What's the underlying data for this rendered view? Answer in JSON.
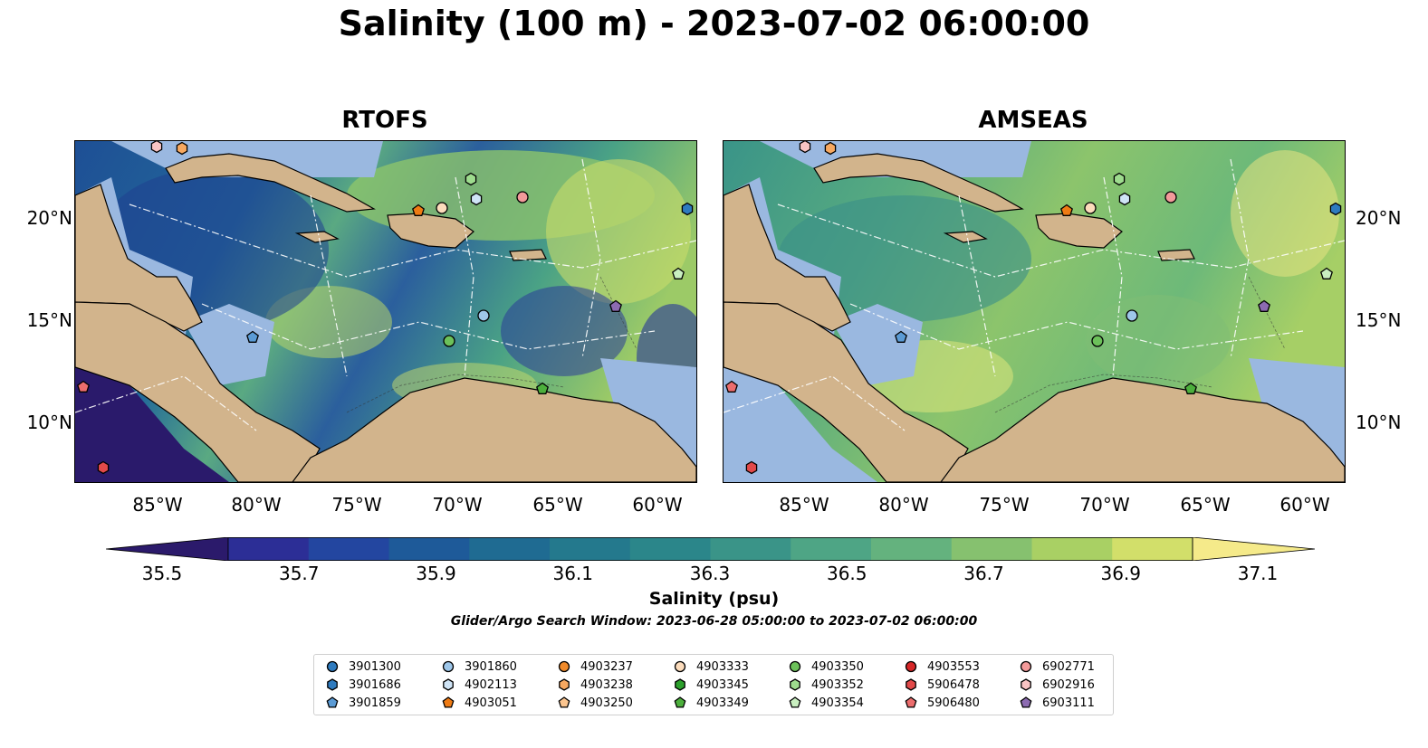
{
  "title": "Salinity (100 m) - 2023-07-02 06:00:00",
  "panels": [
    {
      "title": "RTOFS"
    },
    {
      "title": "AMSEAS"
    }
  ],
  "x_ticks": [
    "85°W",
    "80°W",
    "75°W",
    "70°W",
    "65°W",
    "60°W"
  ],
  "y_ticks": [
    "20°N",
    "15°N",
    "10°N"
  ],
  "colorbar": {
    "ticks": [
      "35.5",
      "35.7",
      "35.9",
      "36.1",
      "36.3",
      "36.5",
      "36.7",
      "36.9",
      "37.1"
    ],
    "label": "Salinity (psu)",
    "colors": [
      "#2b1a6b",
      "#2c2e96",
      "#2346a0",
      "#1e5a99",
      "#1f6b92",
      "#24798d",
      "#2b868a",
      "#3a9488",
      "#4ea585",
      "#64b27e",
      "#86c16f",
      "#a9d064",
      "#d2df6a",
      "#f5ea8a"
    ]
  },
  "search_window": "Glider/Argo Search Window: 2023-06-28 05:00:00 to 2023-07-02 06:00:00",
  "legend": [
    {
      "id": "3901300",
      "marker": "circle",
      "color": "#2e7bbf"
    },
    {
      "id": "3901686",
      "marker": "hexagon",
      "color": "#2e7bbf"
    },
    {
      "id": "3901859",
      "marker": "pentagon",
      "color": "#5b9bd5"
    },
    {
      "id": "3901860",
      "marker": "circle",
      "color": "#9ec7ea"
    },
    {
      "id": "4902113",
      "marker": "hexagon",
      "color": "#cfe4f6"
    },
    {
      "id": "4903051",
      "marker": "pentagon",
      "color": "#ef7b14"
    },
    {
      "id": "4903237",
      "marker": "circle",
      "color": "#f08a2a"
    },
    {
      "id": "4903238",
      "marker": "hexagon",
      "color": "#f7a860"
    },
    {
      "id": "4903250",
      "marker": "pentagon",
      "color": "#fbc58f"
    },
    {
      "id": "4903333",
      "marker": "circle",
      "color": "#fcdcbc"
    },
    {
      "id": "4903345",
      "marker": "hexagon",
      "color": "#2ca02c"
    },
    {
      "id": "4903349",
      "marker": "pentagon",
      "color": "#4caf3c"
    },
    {
      "id": "4903350",
      "marker": "circle",
      "color": "#6cc15a"
    },
    {
      "id": "4903352",
      "marker": "hexagon",
      "color": "#9edc8e"
    },
    {
      "id": "4903354",
      "marker": "pentagon",
      "color": "#c9efc0"
    },
    {
      "id": "4903553",
      "marker": "circle",
      "color": "#d62728"
    },
    {
      "id": "5906478",
      "marker": "hexagon",
      "color": "#e24a4a"
    },
    {
      "id": "5906480",
      "marker": "pentagon",
      "color": "#ec6d6d"
    },
    {
      "id": "6902771",
      "marker": "circle",
      "color": "#f39a9a"
    },
    {
      "id": "6902916",
      "marker": "hexagon",
      "color": "#f8c4c4"
    },
    {
      "id": "6903111",
      "marker": "pentagon",
      "color": "#8c6bb1"
    }
  ],
  "map_colors": {
    "land": "#d2b48c",
    "shelf": "#9ab8e0",
    "coast": "#000000"
  }
}
